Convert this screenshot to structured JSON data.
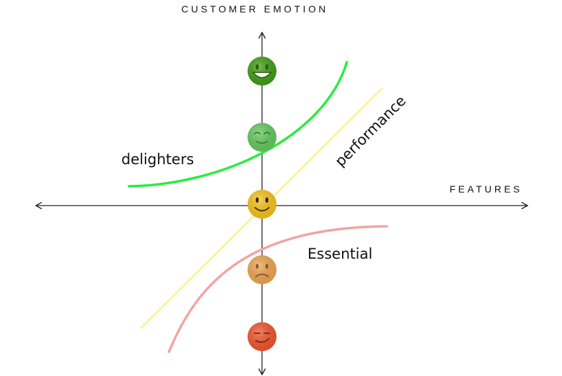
{
  "axes": {
    "y_title": "CUSTOMER EMOTION",
    "x_title": "FEATURES"
  },
  "curves": {
    "delighters": {
      "label": "delighters",
      "color": "#27ee3c"
    },
    "performance": {
      "label": "performance",
      "color": "#faf1a6"
    },
    "essential": {
      "label": "Essential",
      "color": "#f4a3a3"
    }
  },
  "faces": [
    {
      "name": "very-happy-face-icon",
      "color": "#3f9d16",
      "mood": "grin"
    },
    {
      "name": "happy-face-icon",
      "color": "#63c85e",
      "mood": "content"
    },
    {
      "name": "neutral-face-icon",
      "color": "#f6c21a",
      "mood": "smile"
    },
    {
      "name": "sad-face-icon",
      "color": "#eba550",
      "mood": "frown"
    },
    {
      "name": "very-sad-face-icon",
      "color": "#f0542c",
      "mood": "smirk"
    }
  ]
}
